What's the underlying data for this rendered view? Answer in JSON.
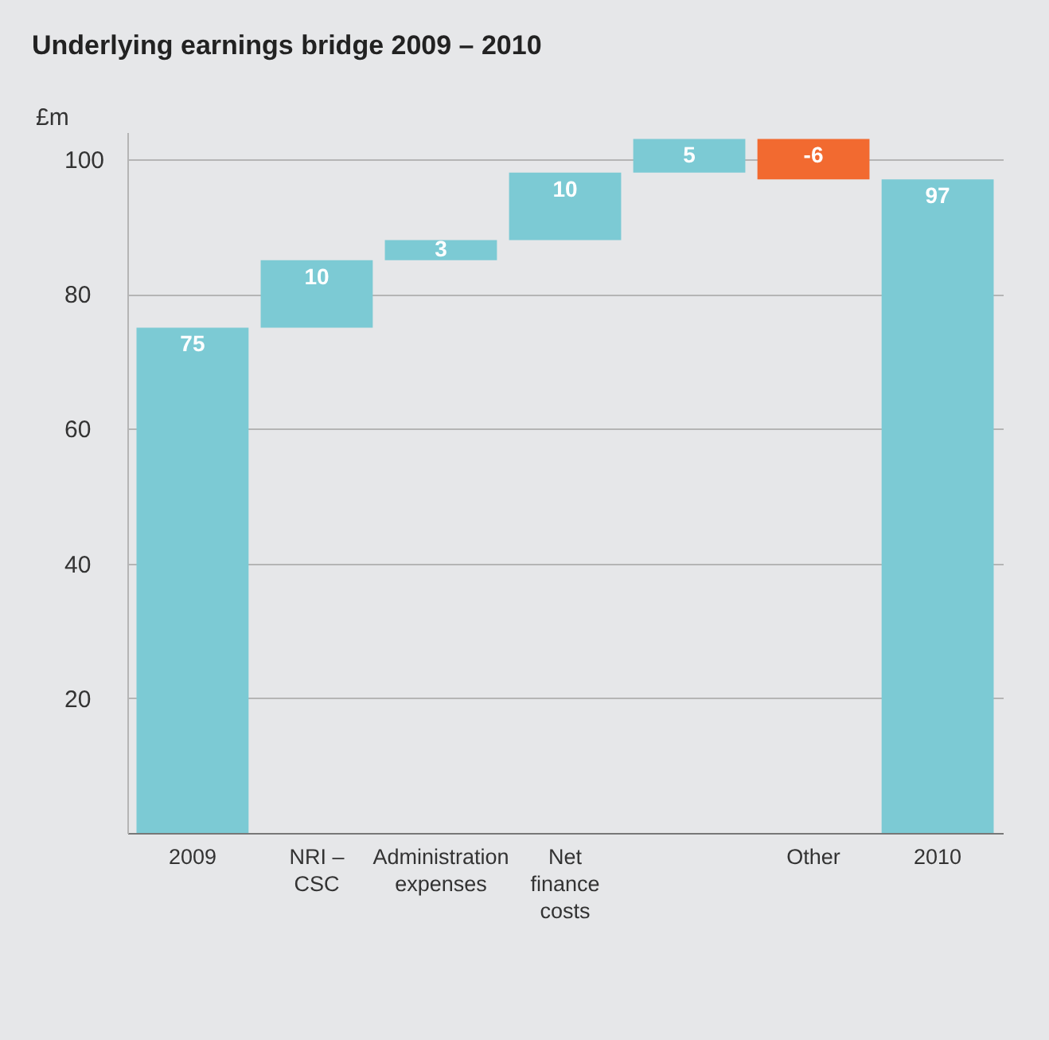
{
  "chart_data": {
    "type": "bar",
    "title": "Underlying earnings bridge 2009 – 2010",
    "ylabel": "£m",
    "categories": [
      "2009",
      "NRI – CSC",
      "Administration expenses",
      "Net finance costs",
      null,
      "Other",
      "2010"
    ],
    "values": [
      75,
      10,
      3,
      10,
      5,
      -6,
      97
    ],
    "base": [
      0,
      75,
      85,
      88,
      98,
      103,
      0
    ],
    "colors": [
      "#7ccad4",
      "#7ccad4",
      "#7ccad4",
      "#7ccad4",
      "#7ccad4",
      "#f26a30",
      "#7ccad4"
    ],
    "ylim": [
      0,
      104
    ],
    "yticks": [
      20,
      40,
      60,
      80,
      100
    ],
    "grid": "y",
    "data_labels": true
  }
}
